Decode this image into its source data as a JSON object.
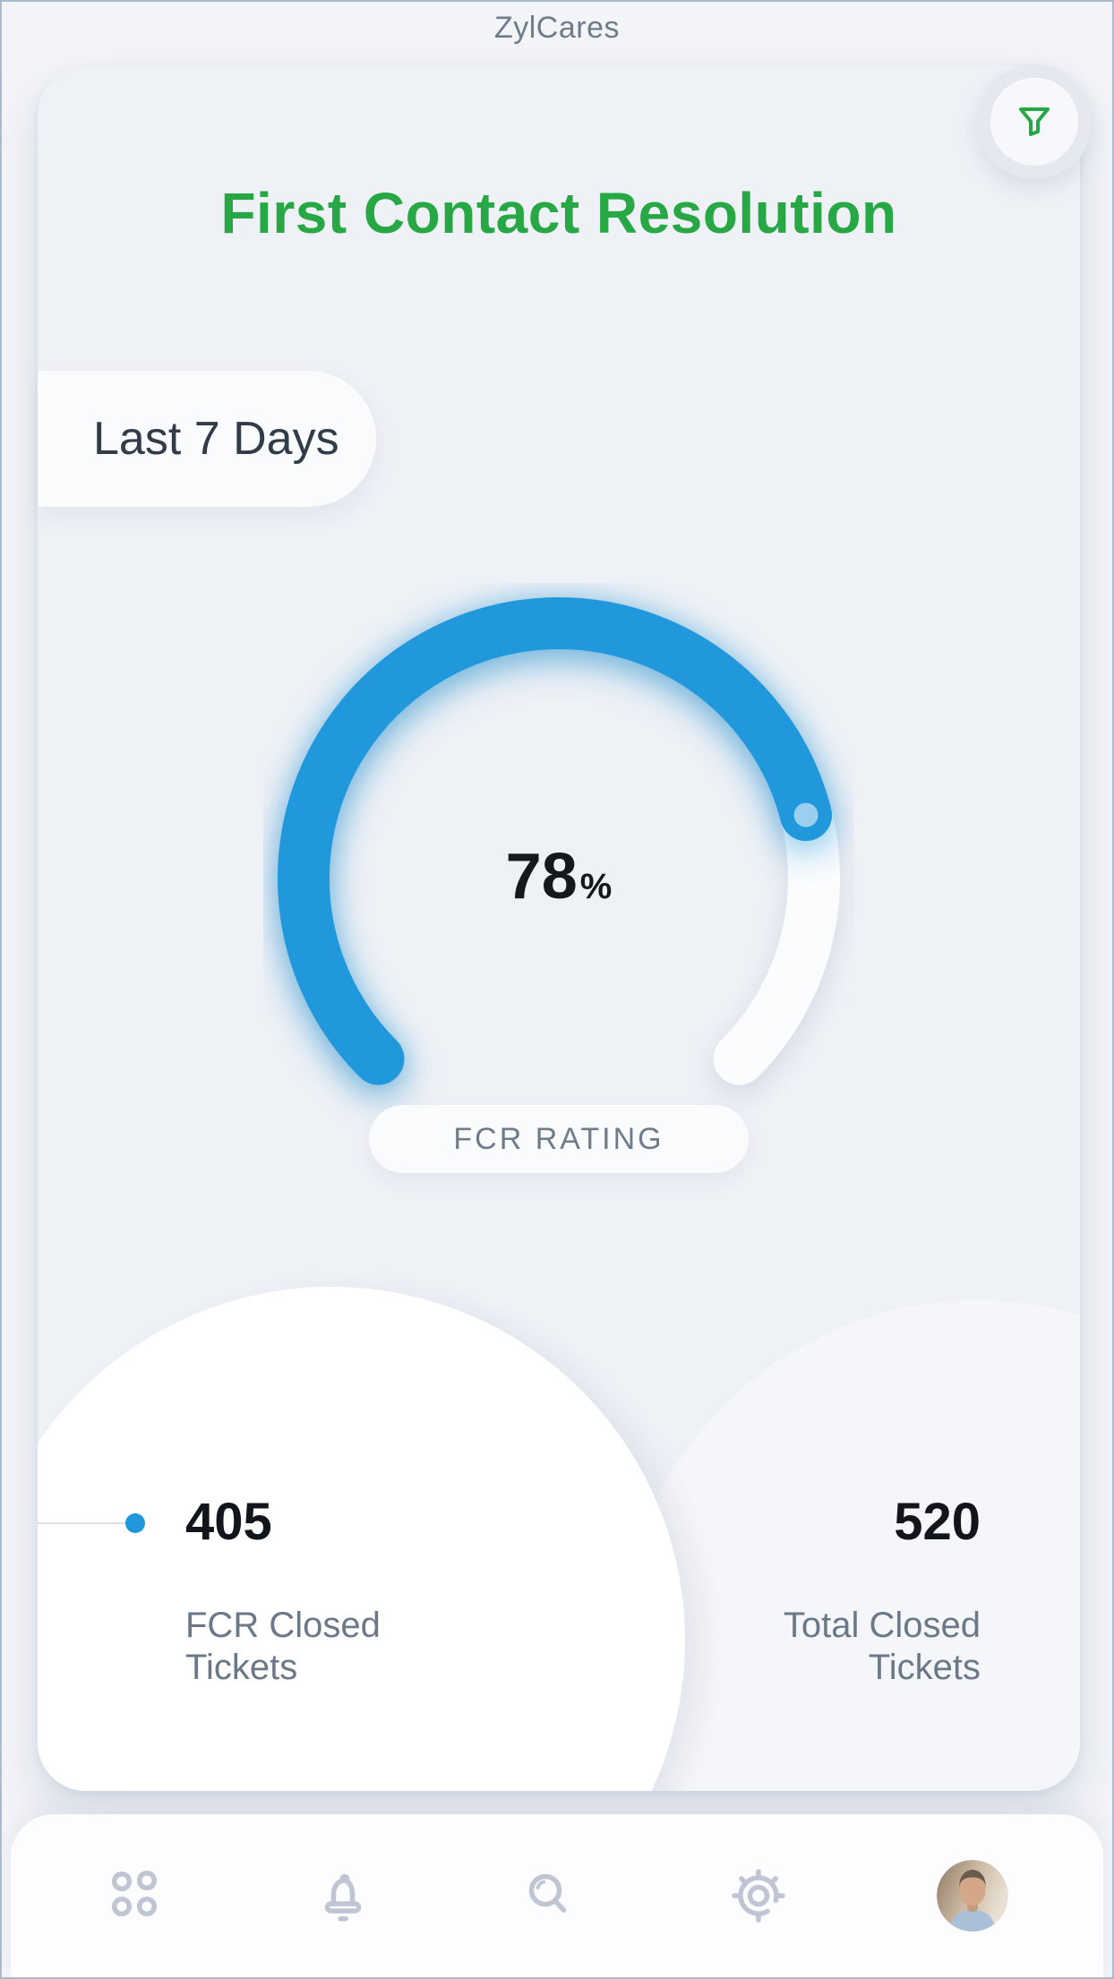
{
  "app_title": "ZylCares",
  "colors": {
    "accent_green": "#28a745",
    "accent_blue": "#2098db",
    "gauge_dot_blue": "#9bcfef",
    "nav_icon_gray": "#bfc5d2"
  },
  "card": {
    "heading": "First Contact Resolution",
    "period_label": "Last 7 Days",
    "filter_icon": "filter-funnel-icon",
    "gauge": {
      "value": "78",
      "unit": "%",
      "percent": 78,
      "caption": "FCR RATING"
    },
    "stats": [
      {
        "value": "405",
        "label_line1": "FCR Closed",
        "label_line2": "Tickets",
        "marker": "blue-dot-with-line"
      },
      {
        "value": "520",
        "label_line1": "Total Closed",
        "label_line2": "Tickets"
      }
    ]
  },
  "nav": {
    "items": [
      {
        "icon": "apps-grid-icon"
      },
      {
        "icon": "notifications-bell-icon"
      },
      {
        "icon": "search-icon"
      },
      {
        "icon": "settings-gear-icon"
      },
      {
        "icon": "profile-avatar"
      }
    ]
  },
  "chart_data": {
    "type": "gauge",
    "value": 78,
    "min": 0,
    "max": 100,
    "unit": "%",
    "label": "FCR RATING",
    "sweep_degrees": 270,
    "metrics": [
      {
        "name": "FCR Closed Tickets",
        "value": 405
      },
      {
        "name": "Total Closed Tickets",
        "value": 520
      }
    ]
  }
}
